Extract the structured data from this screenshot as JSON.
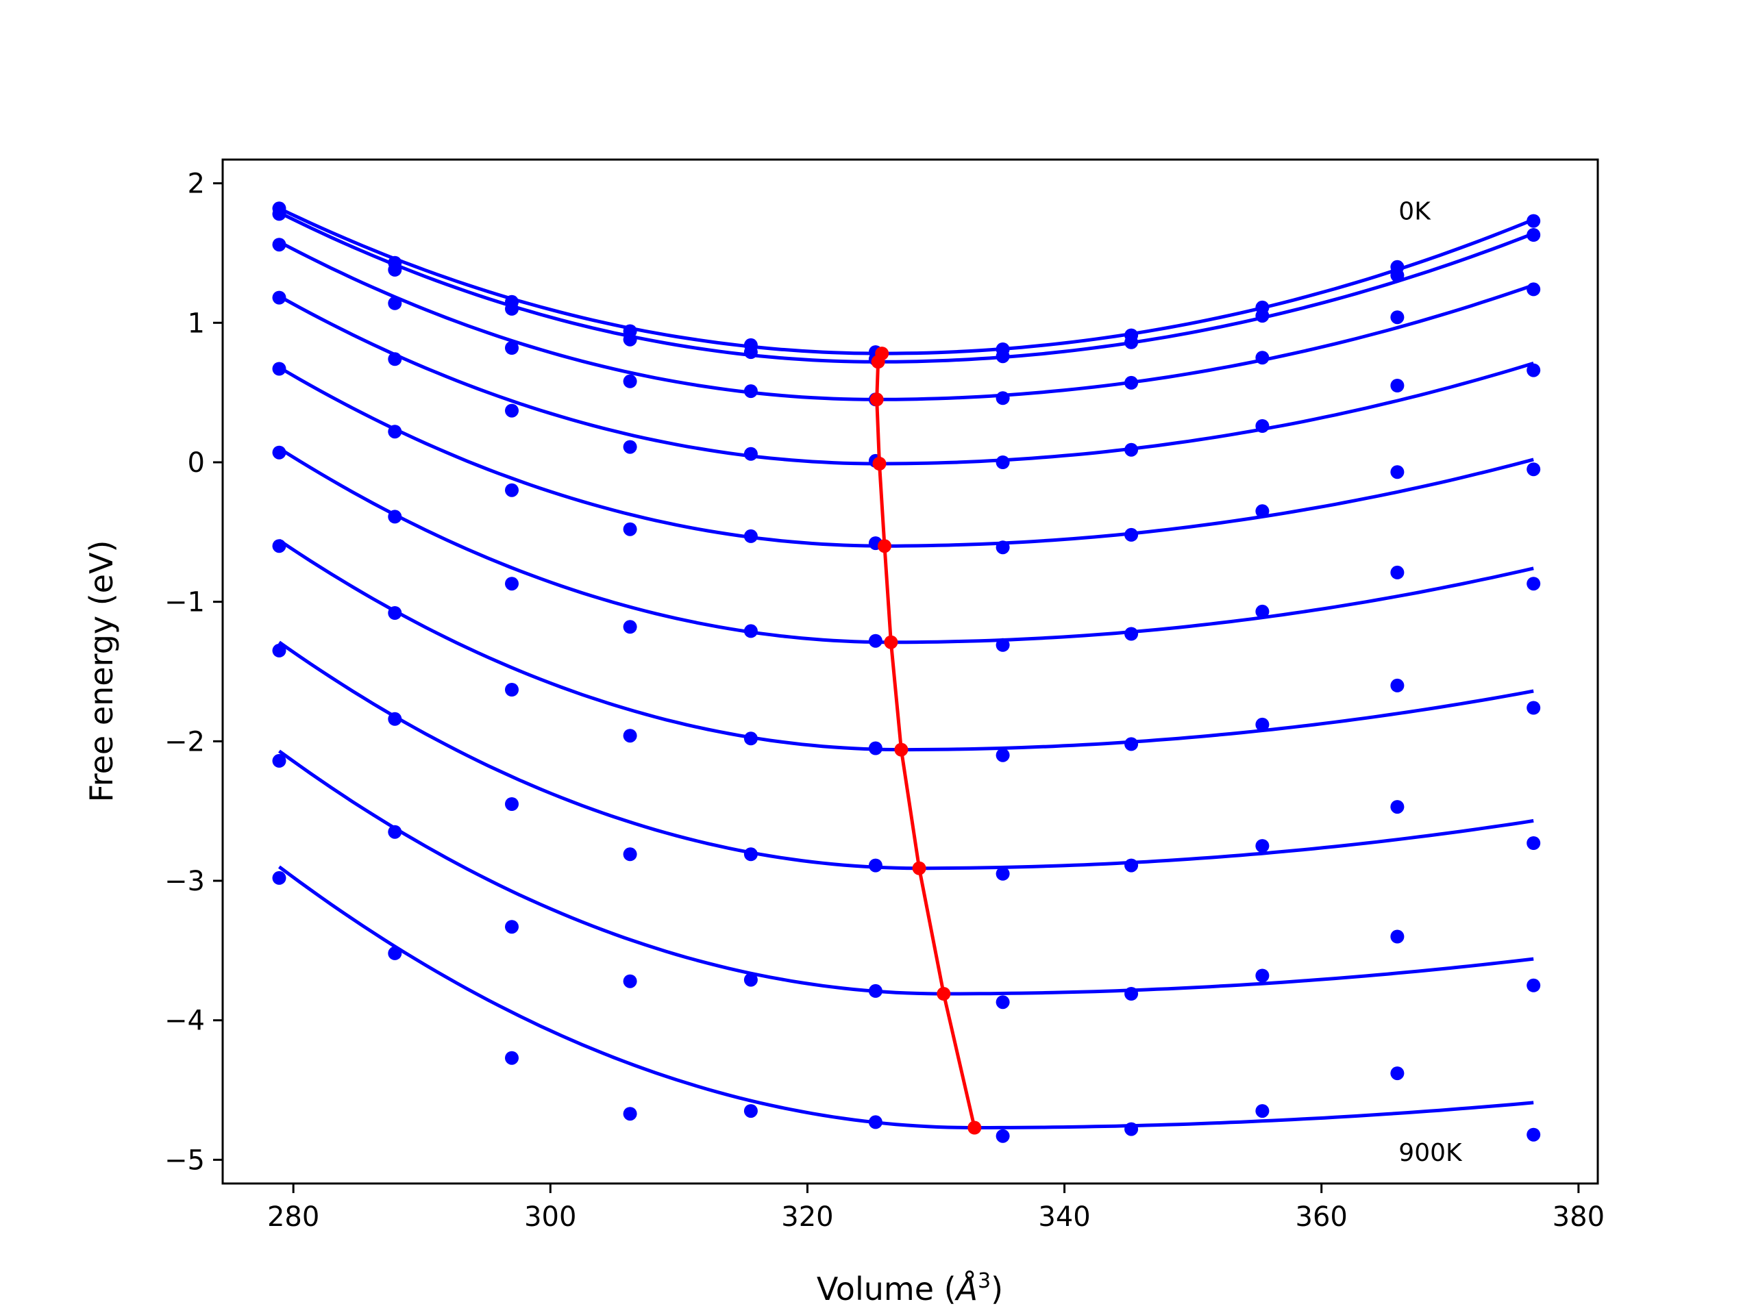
{
  "chart_data": {
    "type": "scatter",
    "xlabel": "Volume (Å³)",
    "xlabel_parts": {
      "text": "Volume (",
      "symbol": "Å",
      "exp": "3",
      "close": ")"
    },
    "ylabel": "Free energy (eV)",
    "xlim": [
      274.5,
      381.5
    ],
    "ylim": [
      -5.17,
      2.17
    ],
    "xticks": [
      280,
      300,
      320,
      340,
      360,
      380
    ],
    "yticks": [
      2,
      1,
      0,
      -1,
      -2,
      -3,
      -4,
      -5
    ],
    "xtick_labels": [
      "280",
      "300",
      "320",
      "340",
      "360",
      "380"
    ],
    "ytick_labels": [
      "2",
      "1",
      "0",
      "−1",
      "−2",
      "−3",
      "−4",
      "−5"
    ],
    "grid": false,
    "colors": {
      "data": "#0000ff",
      "minimum": "#ff0000"
    },
    "annotations": [
      {
        "text": "0K",
        "x": 366,
        "y": 1.8
      },
      {
        "text": "900K",
        "x": 366,
        "y": -4.95
      }
    ],
    "volumes": [
      278.9,
      287.9,
      297.0,
      306.2,
      315.6,
      325.3,
      335.2,
      345.2,
      355.4,
      365.9,
      376.5
    ],
    "series": [
      {
        "points": [
          1.82,
          1.43,
          1.15,
          0.94,
          0.84,
          0.79,
          0.81,
          0.91,
          1.11,
          1.4,
          1.73
        ],
        "fit": {
          "a": 1.82,
          "vmin": 325.8,
          "fmin": 0.78,
          "b": 1.74
        }
      },
      {
        "points": [
          1.78,
          1.38,
          1.1,
          0.88,
          0.79,
          0.74,
          0.76,
          0.86,
          1.05,
          1.34,
          1.63
        ],
        "fit": {
          "a": 1.79,
          "vmin": 325.5,
          "fmin": 0.72,
          "b": 1.64
        }
      },
      {
        "points": [
          1.56,
          1.14,
          0.82,
          0.58,
          0.51,
          0.45,
          0.46,
          0.57,
          0.75,
          1.04,
          1.24
        ],
        "fit": {
          "a": 1.58,
          "vmin": 325.4,
          "fmin": 0.45,
          "b": 1.27
        }
      },
      {
        "points": [
          1.18,
          0.74,
          0.37,
          0.11,
          0.06,
          0.01,
          0.0,
          0.09,
          0.26,
          0.55,
          0.66
        ],
        "fit": {
          "a": 1.19,
          "vmin": 325.6,
          "fmin": -0.01,
          "b": 0.71
        }
      },
      {
        "points": [
          0.67,
          0.22,
          -0.2,
          -0.48,
          -0.53,
          -0.58,
          -0.61,
          -0.52,
          -0.35,
          -0.07,
          -0.05
        ],
        "fit": {
          "a": 0.68,
          "vmin": 326.0,
          "fmin": -0.6,
          "b": 0.02
        }
      },
      {
        "points": [
          0.07,
          -0.39,
          -0.87,
          -1.18,
          -1.21,
          -1.28,
          -1.31,
          -1.23,
          -1.07,
          -0.79,
          -0.87
        ],
        "fit": {
          "a": 0.1,
          "vmin": 326.5,
          "fmin": -1.29,
          "b": -0.76
        }
      },
      {
        "points": [
          -0.6,
          -1.08,
          -1.63,
          -1.96,
          -1.98,
          -2.05,
          -2.1,
          -2.02,
          -1.88,
          -1.6,
          -1.76
        ],
        "fit": {
          "a": -0.56,
          "vmin": 327.3,
          "fmin": -2.06,
          "b": -1.64
        }
      },
      {
        "points": [
          -1.35,
          -1.84,
          -2.45,
          -2.81,
          -2.81,
          -2.89,
          -2.95,
          -2.89,
          -2.75,
          -2.47,
          -2.73
        ],
        "fit": {
          "a": -1.29,
          "vmin": 328.7,
          "fmin": -2.91,
          "b": -2.57
        }
      },
      {
        "points": [
          -2.14,
          -2.65,
          -3.33,
          -3.72,
          -3.71,
          -3.79,
          -3.87,
          -3.81,
          -3.68,
          -3.4,
          -3.75
        ],
        "fit": {
          "a": -2.07,
          "vmin": 330.6,
          "fmin": -3.81,
          "b": -3.56
        }
      },
      {
        "points": [
          -2.98,
          -3.52,
          -4.27,
          -4.67,
          -4.65,
          -4.73,
          -4.83,
          -4.78,
          -4.65,
          -4.38,
          -4.82
        ],
        "fit": {
          "a": -2.9,
          "vmin": 333.0,
          "fmin": -4.77,
          "b": -4.59
        }
      }
    ],
    "minimum_line": {
      "x": [
        325.8,
        325.5,
        325.4,
        325.6,
        326.0,
        326.5,
        327.3,
        328.7,
        330.6,
        333.0
      ],
      "y": [
        0.78,
        0.72,
        0.45,
        -0.01,
        -0.6,
        -1.29,
        -2.06,
        -2.91,
        -3.81,
        -4.77
      ]
    }
  }
}
